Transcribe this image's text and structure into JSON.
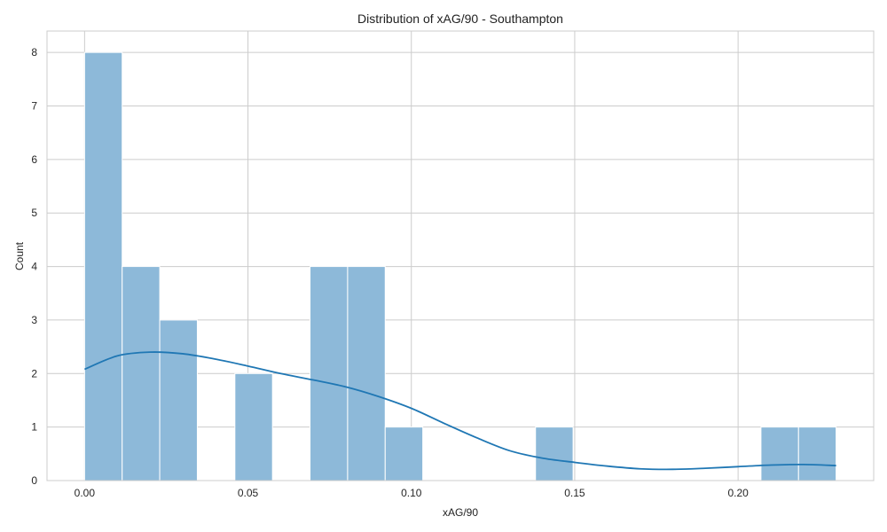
{
  "chart_data": {
    "type": "histogram",
    "title": "Distribution of xAG/90 - Southampton",
    "xlabel": "xAG/90",
    "ylabel": "Count",
    "xlim": [
      -0.0115,
      0.2415
    ],
    "ylim": [
      0,
      8.4
    ],
    "xticks": [
      0.0,
      0.05,
      0.1,
      0.15,
      0.2
    ],
    "xtick_labels": [
      "0.00",
      "0.05",
      "0.10",
      "0.15",
      "0.20"
    ],
    "yticks": [
      0,
      1,
      2,
      3,
      4,
      5,
      6,
      7,
      8
    ],
    "ytick_labels": [
      "0",
      "1",
      "2",
      "3",
      "4",
      "5",
      "6",
      "7",
      "8"
    ],
    "grid": true,
    "bin_edges": [
      0.0,
      0.0115,
      0.023,
      0.0345,
      0.046,
      0.0575,
      0.069,
      0.0805,
      0.092,
      0.1035,
      0.115,
      0.1265,
      0.138,
      0.1495,
      0.161,
      0.1725,
      0.184,
      0.1955,
      0.207,
      0.2185,
      0.23
    ],
    "counts": [
      8,
      4,
      3,
      0,
      2,
      0,
      4,
      4,
      1,
      0,
      0,
      0,
      1,
      0,
      0,
      0,
      0,
      0,
      1,
      1
    ],
    "kde": {
      "x": [
        0.0,
        0.01,
        0.02,
        0.03,
        0.04,
        0.05,
        0.06,
        0.07,
        0.08,
        0.09,
        0.1,
        0.11,
        0.12,
        0.13,
        0.14,
        0.15,
        0.16,
        0.17,
        0.18,
        0.19,
        0.2,
        0.21,
        0.22,
        0.23
      ],
      "y": [
        2.08,
        2.33,
        2.4,
        2.37,
        2.27,
        2.14,
        2.0,
        1.88,
        1.75,
        1.57,
        1.35,
        1.07,
        0.8,
        0.56,
        0.42,
        0.34,
        0.27,
        0.22,
        0.21,
        0.23,
        0.26,
        0.29,
        0.3,
        0.28
      ]
    },
    "colors": {
      "bar_fill": "#8db9d9",
      "kde_line": "#1f77b4"
    }
  }
}
